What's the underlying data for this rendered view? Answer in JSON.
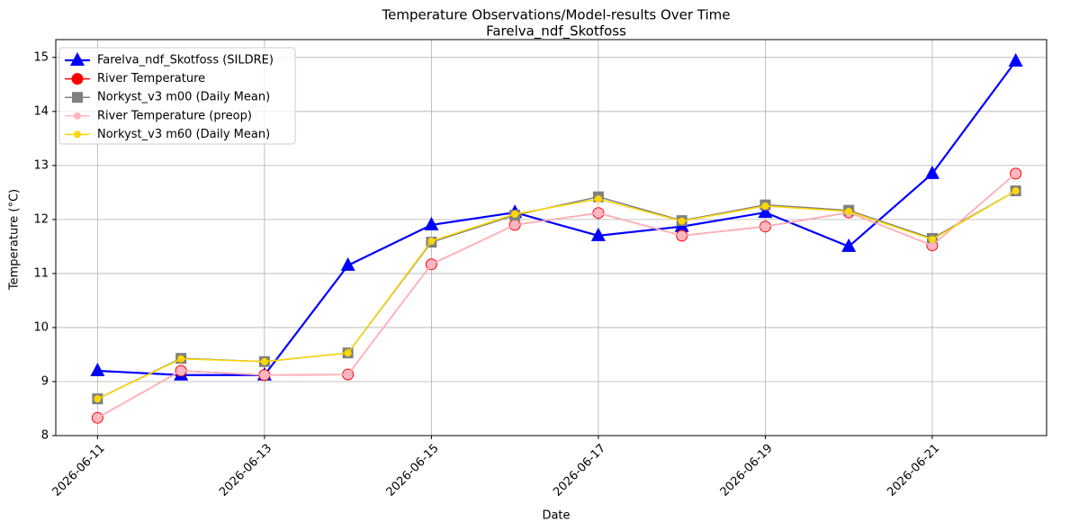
{
  "chart_data": {
    "type": "line",
    "title": "Temperature Observations/Model-results Over Time",
    "subtitle": "Farelva_ndf_Skotfoss",
    "x_label": "Date",
    "y_label": "Temperature (°C)",
    "x": [
      "2026-06-11",
      "2026-06-12",
      "2026-06-13",
      "2026-06-14",
      "2026-06-15",
      "2026-06-16",
      "2026-06-17",
      "2026-06-18",
      "2026-06-19",
      "2026-06-20",
      "2026-06-21",
      "2026-06-22"
    ],
    "xticks": [
      "2026-06-11",
      "2026-06-13",
      "2026-06-15",
      "2026-06-17",
      "2026-06-19",
      "2026-06-21"
    ],
    "ylim": [
      8,
      15.33
    ],
    "yticks": [
      8,
      9,
      10,
      11,
      12,
      13,
      14,
      15
    ],
    "grid": true,
    "legend": "upper left",
    "series": [
      {
        "name": "Farelva_ndf_Skotfoss (SILDRE)",
        "color": "#0000ff",
        "marker": "triangle",
        "values": [
          9.2,
          9.12,
          9.12,
          11.15,
          11.9,
          12.13,
          11.7,
          11.87,
          12.13,
          11.5,
          12.85,
          14.93
        ]
      },
      {
        "name": "River Temperature",
        "color": "#ff0000",
        "marker": "circle",
        "values": [
          8.33,
          9.2,
          9.12,
          9.13,
          11.17,
          11.9,
          12.12,
          11.7,
          11.87,
          12.13,
          11.52,
          12.85
        ]
      },
      {
        "name": "Norkyst_v3 m00 (Daily Mean)",
        "color": "#808080",
        "marker": "square",
        "values": [
          8.68,
          9.43,
          9.37,
          9.53,
          11.58,
          12.08,
          12.42,
          11.98,
          12.27,
          12.17,
          11.65,
          12.53
        ]
      },
      {
        "name": "River Temperature (preop)",
        "color": "#ffb6c1",
        "marker": "small-circle",
        "values": [
          8.33,
          9.2,
          9.12,
          9.13,
          11.17,
          11.9,
          12.12,
          11.7,
          11.87,
          12.13,
          11.52,
          12.85
        ]
      },
      {
        "name": "Norkyst_v3 m60 (Daily Mean)",
        "color": "#ffd700",
        "marker": "small-circle",
        "values": [
          8.68,
          9.42,
          9.37,
          9.53,
          11.6,
          12.1,
          12.38,
          11.97,
          12.25,
          12.15,
          11.63,
          12.53
        ]
      }
    ]
  }
}
